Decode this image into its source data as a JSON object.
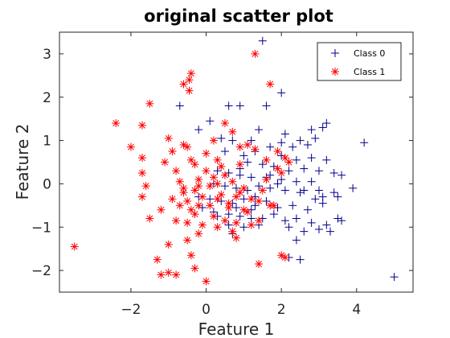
{
  "chart_data": {
    "type": "scatter",
    "title": "original scatter plot",
    "xlabel": "Feature 1",
    "ylabel": "Feature 2",
    "xlim": [
      -3.9,
      5.5
    ],
    "ylim": [
      -2.5,
      3.5
    ],
    "xticks": [
      -2,
      0,
      2,
      4
    ],
    "yticks": [
      -2,
      -1,
      0,
      1,
      2,
      3
    ],
    "grid": false,
    "legend_position": "top-right",
    "series": [
      {
        "name": "Class 0",
        "marker": "plus",
        "color": "#00008B",
        "points": [
          [
            1.5,
            3.3
          ],
          [
            2,
            2.1
          ],
          [
            -0.7,
            1.8
          ],
          [
            0.6,
            1.8
          ],
          [
            0.9,
            1.8
          ],
          [
            1.6,
            1.8
          ],
          [
            -0.2,
            1.25
          ],
          [
            0.1,
            1.45
          ],
          [
            0.4,
            1.05
          ],
          [
            0.7,
            1.0
          ],
          [
            1.2,
            1.0
          ],
          [
            1.4,
            1.25
          ],
          [
            2.1,
            1.15
          ],
          [
            2.5,
            1.0
          ],
          [
            2.8,
            1.25
          ],
          [
            3.1,
            1.3
          ],
          [
            3.2,
            1.4
          ],
          [
            2.7,
            0.9
          ],
          [
            2.9,
            1.05
          ],
          [
            4.2,
            0.95
          ],
          [
            1.7,
            0.85
          ],
          [
            2.3,
            0.85
          ],
          [
            0.5,
            0.75
          ],
          [
            1.0,
            0.65
          ],
          [
            1.3,
            0.75
          ],
          [
            2.0,
            0.65
          ],
          [
            2.4,
            0.55
          ],
          [
            2.8,
            0.6
          ],
          [
            3.2,
            0.55
          ],
          [
            1.1,
            0.5
          ],
          [
            1.5,
            0.45
          ],
          [
            1.8,
            0.4
          ],
          [
            2.2,
            0.3
          ],
          [
            2.6,
            0.35
          ],
          [
            3.0,
            0.3
          ],
          [
            3.4,
            0.25
          ],
          [
            0.3,
            0.3
          ],
          [
            0.6,
            0.25
          ],
          [
            0.9,
            0.2
          ],
          [
            1.2,
            0.15
          ],
          [
            1.6,
            0.15
          ],
          [
            2.0,
            0.1
          ],
          [
            2.4,
            0.05
          ],
          [
            2.8,
            0.05
          ],
          [
            3.6,
            0.2
          ],
          [
            0.2,
            0.0
          ],
          [
            0.5,
            -0.05
          ],
          [
            0.8,
            -0.1
          ],
          [
            1.1,
            -0.15
          ],
          [
            1.4,
            -0.05
          ],
          [
            1.7,
            -0.1
          ],
          [
            2.1,
            -0.15
          ],
          [
            2.5,
            -0.2
          ],
          [
            3.0,
            -0.15
          ],
          [
            3.4,
            -0.2
          ],
          [
            3.9,
            -0.1
          ],
          [
            -0.2,
            -0.3
          ],
          [
            0.1,
            -0.35
          ],
          [
            0.4,
            -0.4
          ],
          [
            0.7,
            -0.45
          ],
          [
            1.0,
            -0.35
          ],
          [
            1.3,
            -0.5
          ],
          [
            1.6,
            -0.4
          ],
          [
            1.9,
            -0.55
          ],
          [
            2.3,
            -0.5
          ],
          [
            2.7,
            -0.6
          ],
          [
            3.1,
            -0.45
          ],
          [
            3.5,
            -0.3
          ],
          [
            0.2,
            -0.65
          ],
          [
            0.6,
            -0.7
          ],
          [
            0.9,
            -0.75
          ],
          [
            1.2,
            -0.6
          ],
          [
            1.5,
            -0.8
          ],
          [
            1.8,
            -0.7
          ],
          [
            2.1,
            -0.85
          ],
          [
            2.4,
            -0.8
          ],
          [
            2.8,
            -0.9
          ],
          [
            3.2,
            -0.95
          ],
          [
            3.6,
            -0.85
          ],
          [
            3.5,
            -0.8
          ],
          [
            0.6,
            -0.95
          ],
          [
            1.0,
            -1.0
          ],
          [
            1.4,
            -0.95
          ],
          [
            2.2,
            -1.0
          ],
          [
            2.6,
            -1.1
          ],
          [
            3.0,
            -1.05
          ],
          [
            3.3,
            -1.1
          ],
          [
            0.7,
            -1.15
          ],
          [
            2.4,
            -1.3
          ],
          [
            2.2,
            -1.7
          ],
          [
            2.5,
            -1.75
          ],
          [
            5.0,
            -2.15
          ],
          [
            3.1,
            -0.3
          ],
          [
            2.6,
            -0.15
          ],
          [
            1.9,
            0.0
          ],
          [
            1.3,
            -0.3
          ],
          [
            0.8,
            -0.55
          ],
          [
            0.3,
            -0.75
          ],
          [
            -0.1,
            -0.55
          ],
          [
            1.7,
            0.2
          ],
          [
            2.9,
            -0.35
          ],
          [
            2.0,
            0.95
          ],
          [
            0.9,
            0.35
          ],
          [
            1.2,
            -0.8
          ]
        ]
      },
      {
        "name": "Class 1",
        "marker": "asterisk",
        "color": "#FF0000",
        "points": [
          [
            1.3,
            3.0
          ],
          [
            -0.4,
            2.55
          ],
          [
            -0.6,
            2.3
          ],
          [
            -0.45,
            2.4
          ],
          [
            -0.45,
            2.15
          ],
          [
            1.7,
            2.3
          ],
          [
            -1.5,
            1.85
          ],
          [
            -2.4,
            1.4
          ],
          [
            -1.7,
            1.35
          ],
          [
            0.5,
            1.4
          ],
          [
            0.7,
            1.2
          ],
          [
            0.2,
            1.0
          ],
          [
            -2.0,
            0.85
          ],
          [
            -1.0,
            1.05
          ],
          [
            -0.6,
            0.9
          ],
          [
            -0.5,
            0.85
          ],
          [
            -0.9,
            0.75
          ],
          [
            0.9,
            0.85
          ],
          [
            1.1,
            0.9
          ],
          [
            1.3,
            0.8
          ],
          [
            1.9,
            0.75
          ],
          [
            2.1,
            0.6
          ],
          [
            -1.7,
            0.6
          ],
          [
            -0.4,
            0.55
          ],
          [
            -0.3,
            0.45
          ],
          [
            0.3,
            0.55
          ],
          [
            -1.1,
            0.5
          ],
          [
            0.9,
            0.45
          ],
          [
            1.6,
            0.55
          ],
          [
            1.9,
            0.35
          ],
          [
            2.2,
            0.5
          ],
          [
            -1.7,
            0.25
          ],
          [
            -0.8,
            0.3
          ],
          [
            0.0,
            0.3
          ],
          [
            0.2,
            0.15
          ],
          [
            0.5,
            0.2
          ],
          [
            -0.2,
            0.1
          ],
          [
            0.1,
            -0.05
          ],
          [
            0.3,
            0.0
          ],
          [
            0.7,
            0.05
          ],
          [
            1.0,
            -0.1
          ],
          [
            1.5,
            -0.15
          ],
          [
            -1.6,
            -0.05
          ],
          [
            -0.6,
            -0.1
          ],
          [
            -0.3,
            -0.15
          ],
          [
            -0.1,
            -0.3
          ],
          [
            0.4,
            -0.25
          ],
          [
            0.8,
            -0.3
          ],
          [
            1.2,
            -0.35
          ],
          [
            -1.7,
            -0.3
          ],
          [
            -0.9,
            -0.35
          ],
          [
            -0.5,
            -0.4
          ],
          [
            -0.2,
            -0.5
          ],
          [
            0.1,
            -0.5
          ],
          [
            0.6,
            -0.55
          ],
          [
            1.0,
            -0.6
          ],
          [
            1.4,
            -0.4
          ],
          [
            1.7,
            -0.5
          ],
          [
            -0.7,
            -0.5
          ],
          [
            -0.3,
            -0.7
          ],
          [
            0.2,
            -0.75
          ],
          [
            0.5,
            -0.85
          ],
          [
            0.8,
            -0.9
          ],
          [
            1.2,
            -0.95
          ],
          [
            1.4,
            -0.85
          ],
          [
            -1.5,
            -0.8
          ],
          [
            -0.8,
            -0.85
          ],
          [
            -0.5,
            -0.9
          ],
          [
            -0.1,
            -0.95
          ],
          [
            0.3,
            -1.0
          ],
          [
            0.7,
            -1.1
          ],
          [
            -0.2,
            -1.15
          ],
          [
            -0.5,
            -1.3
          ],
          [
            0.8,
            -1.25
          ],
          [
            -1.0,
            -1.4
          ],
          [
            -3.5,
            -1.45
          ],
          [
            -0.4,
            -1.65
          ],
          [
            -1.3,
            -1.75
          ],
          [
            2.1,
            -1.7
          ],
          [
            1.4,
            -1.85
          ],
          [
            -0.3,
            -1.95
          ],
          [
            -1.0,
            -2.05
          ],
          [
            -1.2,
            -2.1
          ],
          [
            -0.8,
            -2.1
          ],
          [
            0.0,
            -2.25
          ],
          [
            2.0,
            -1.65
          ],
          [
            -0.6,
            -0.2
          ],
          [
            0.4,
            0.4
          ],
          [
            1.8,
            -0.5
          ],
          [
            -0.2,
            -0.05
          ],
          [
            0.6,
            -0.45
          ],
          [
            1.1,
            -0.65
          ],
          [
            -0.7,
            0.05
          ],
          [
            -1.2,
            -0.6
          ],
          [
            0.3,
            -0.35
          ],
          [
            0.9,
            -0.2
          ],
          [
            1.6,
            0.1
          ],
          [
            -0.4,
            -0.6
          ],
          [
            0.0,
            0.7
          ],
          [
            2.0,
            0.25
          ]
        ]
      }
    ]
  }
}
